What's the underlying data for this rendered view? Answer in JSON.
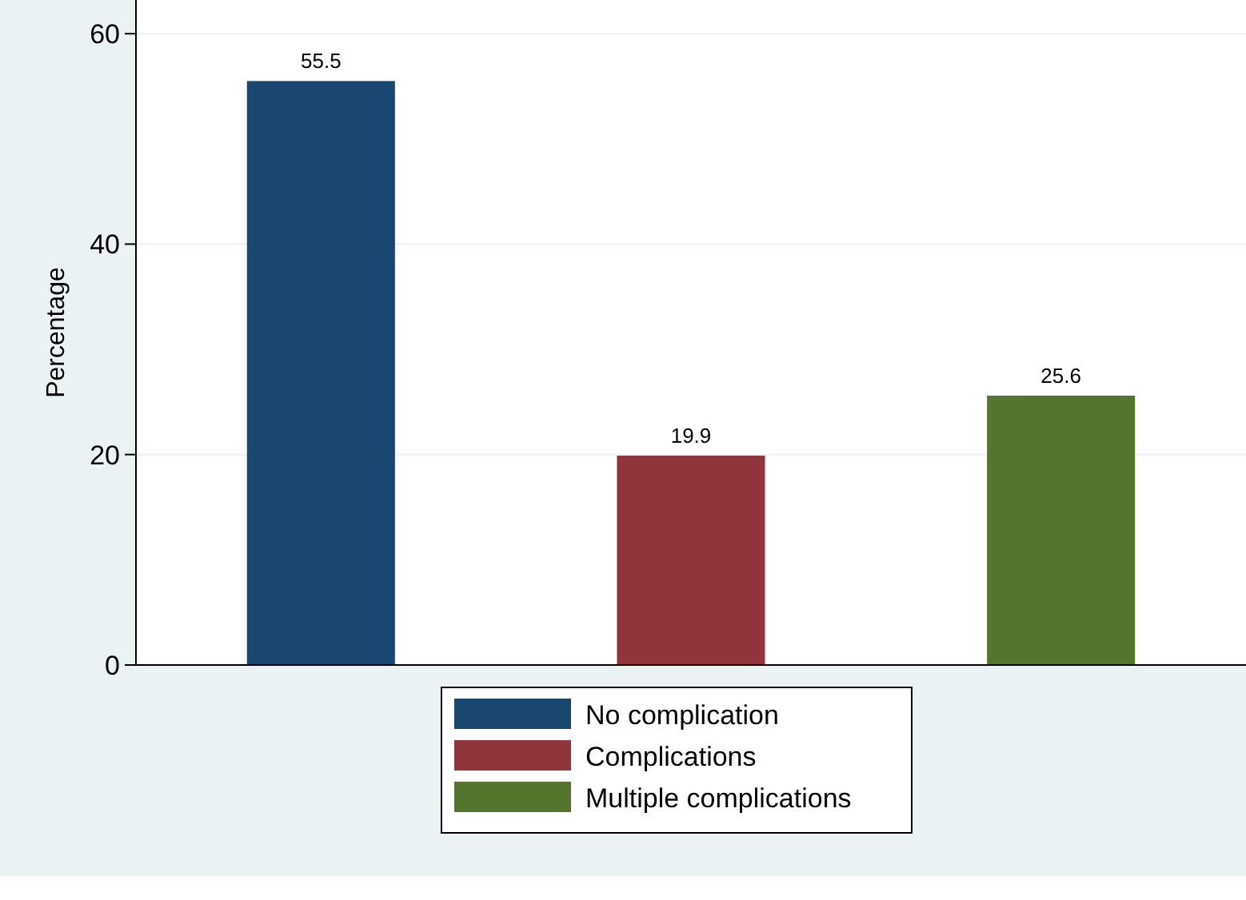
{
  "chart_data": {
    "type": "bar",
    "ylabel": "Percentage",
    "categories": [
      null,
      null,
      null
    ],
    "series": [
      {
        "name": "No complication",
        "color": "#1a476f",
        "values": [
          55.5,
          null,
          null
        ]
      },
      {
        "name": "Complications",
        "color": "#90353b",
        "values": [
          null,
          19.9,
          null
        ]
      },
      {
        "name": "Multiple complications",
        "color": "#55752f",
        "values": [
          null,
          null,
          25.6
        ]
      }
    ],
    "ylim": [
      0,
      63.2
    ],
    "yticks": [
      0,
      20,
      40,
      60
    ],
    "grid": "y",
    "legend": "bottom",
    "data_labels": true
  }
}
